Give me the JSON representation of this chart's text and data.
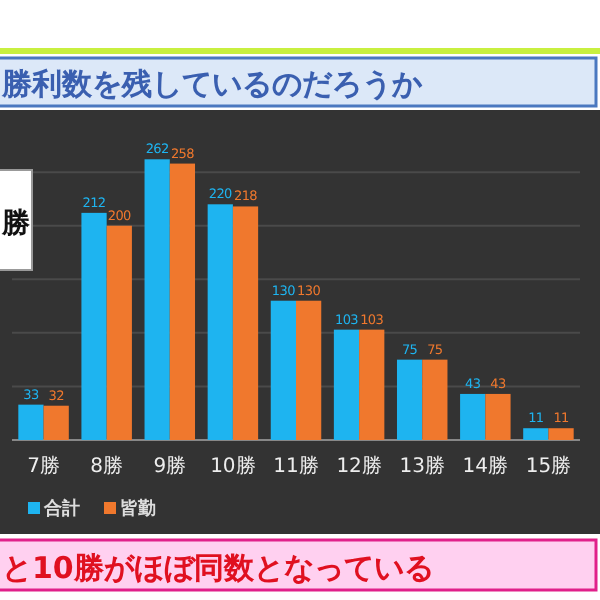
{
  "chart_data": {
    "type": "bar",
    "title": "勝利数を残しているのだろうか",
    "annotations": [
      "勝",
      "と10勝がほぼ同数となっている"
    ],
    "categories": [
      "7勝",
      "8勝",
      "9勝",
      "10勝",
      "11勝",
      "12勝",
      "13勝",
      "14勝",
      "15勝"
    ],
    "series": [
      {
        "name": "合計",
        "color": "#1eb4f0",
        "values": [
          33,
          212,
          262,
          220,
          130,
          103,
          75,
          43,
          11
        ]
      },
      {
        "name": "皆勤",
        "color": "#f0782d",
        "values": [
          32,
          200,
          258,
          218,
          130,
          103,
          75,
          43,
          11
        ]
      }
    ],
    "yticks": [
      {
        "value": 50,
        "label": null
      },
      {
        "value": 100,
        "label": null
      },
      {
        "value": 150,
        "label": null
      },
      {
        "value": 200,
        "label": null
      },
      {
        "value": 250,
        "label": null
      }
    ],
    "grid": "y",
    "data_labels": true,
    "legend": "bottom left"
  }
}
